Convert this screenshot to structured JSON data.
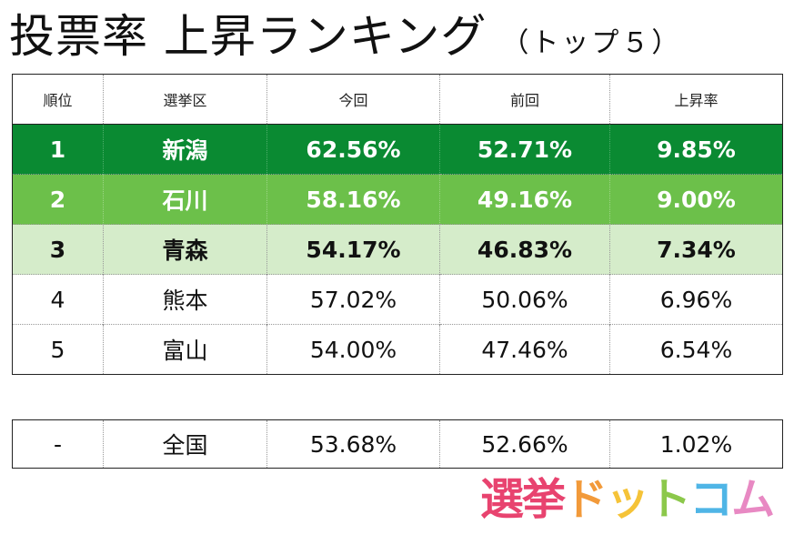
{
  "title": {
    "main": "投票率 上昇ランキング",
    "sub": "（トップ５）"
  },
  "table": {
    "headers": [
      "順位",
      "選挙区",
      "今回",
      "前回",
      "上昇率"
    ],
    "rows": [
      {
        "rank": "1",
        "district": "新潟",
        "current": "62.56%",
        "previous": "52.71%",
        "increase": "9.85%"
      },
      {
        "rank": "2",
        "district": "石川",
        "current": "58.16%",
        "previous": "49.16%",
        "increase": "9.00%"
      },
      {
        "rank": "3",
        "district": "青森",
        "current": "54.17%",
        "previous": "46.83%",
        "increase": "7.34%"
      },
      {
        "rank": "4",
        "district": "熊本",
        "current": "57.02%",
        "previous": "50.06%",
        "increase": "6.96%"
      },
      {
        "rank": "5",
        "district": "富山",
        "current": "54.00%",
        "previous": "47.46%",
        "increase": "6.54%"
      }
    ],
    "row_colors": [
      "#0a8a32",
      "#6cc04a",
      "#d5ecca"
    ]
  },
  "national": {
    "rank": "-",
    "district": "全国",
    "current": "53.68%",
    "previous": "52.66%",
    "increase": "1.02%"
  },
  "logo": {
    "chars": [
      {
        "text": "選",
        "color": "#e8436f"
      },
      {
        "text": "挙",
        "color": "#e8436f"
      },
      {
        "text": "ド",
        "color": "#f29a3a"
      },
      {
        "text": "ッ",
        "color": "#f5c338"
      },
      {
        "text": "ト",
        "color": "#8cc84b"
      },
      {
        "text": "コ",
        "color": "#4fb5e6"
      },
      {
        "text": "ム",
        "color": "#e889c3"
      }
    ]
  }
}
